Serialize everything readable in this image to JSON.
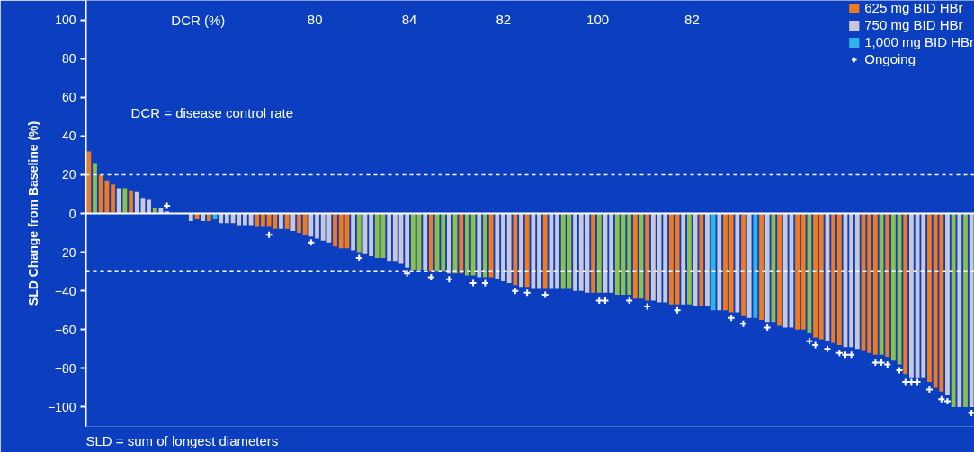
{
  "chart_data": {
    "type": "bar",
    "ylabel": "SLD Change from Baseline (%)",
    "ylim": [
      -110,
      110
    ],
    "yticks": [
      -100,
      -80,
      -60,
      -40,
      -20,
      0,
      20,
      40,
      60,
      80,
      100
    ],
    "grid": false,
    "legend": "top right",
    "tick_labels": "y",
    "annotations": [
      "DCR (%)",
      "80",
      "84",
      "82",
      "100",
      "82",
      "DCR = disease control rate",
      "SLD = sum of longest diameters"
    ],
    "ref_lines": [
      {
        "axis": "y",
        "value": 20,
        "color": "#ffffff",
        "line_style": "dashed"
      },
      {
        "axis": "y",
        "value": -30,
        "color": "#ffffff",
        "line_style": "dashed"
      }
    ],
    "categories": [
      null,
      null,
      null,
      null,
      null,
      null,
      null,
      null,
      null,
      null,
      null,
      null,
      null,
      null,
      null,
      null,
      null,
      null,
      null,
      null,
      null,
      null,
      null,
      null,
      null,
      null,
      null,
      null,
      null,
      null,
      null,
      null,
      null,
      null,
      null,
      null,
      null,
      null,
      null,
      null,
      null,
      null,
      null,
      null,
      null,
      null,
      null,
      null,
      null,
      null,
      null,
      null,
      null,
      null,
      null,
      null,
      null,
      null,
      null,
      null,
      null,
      null,
      null,
      null,
      null,
      null,
      null,
      null,
      null,
      null,
      null,
      null,
      null,
      null,
      null,
      null,
      null,
      null,
      null,
      null,
      null,
      null,
      null,
      null,
      null,
      null,
      null,
      null,
      null,
      null,
      null,
      null,
      null,
      null,
      null,
      null,
      null,
      null,
      null,
      null,
      null,
      null,
      null,
      null,
      null,
      null,
      null,
      null,
      null,
      null,
      null,
      null,
      null,
      null,
      null,
      null,
      null,
      null,
      null,
      null,
      null,
      null,
      null,
      null,
      null,
      null,
      null,
      null,
      null,
      null,
      null,
      null,
      null,
      null,
      null,
      null,
      null,
      null,
      null,
      null,
      null,
      null,
      null,
      null,
      null,
      null,
      null,
      null
    ],
    "series": [
      {
        "name": "625 mg BID HBr",
        "type": "bar",
        "color": "#f07a1e",
        "values": [
          32,
          null,
          20,
          17,
          15,
          null,
          null,
          12,
          null,
          null,
          null,
          null,
          null,
          null,
          null,
          null,
          null,
          null,
          -3,
          null,
          -4,
          null,
          null,
          null,
          null,
          null,
          null,
          null,
          -7,
          -7,
          -7,
          -8,
          null,
          -8,
          null,
          -10,
          -11,
          null,
          null,
          null,
          null,
          -17,
          -18,
          -18,
          null,
          null,
          null,
          null,
          null,
          null,
          null,
          null,
          null,
          null,
          null,
          null,
          null,
          -30,
          null,
          null,
          null,
          null,
          -31,
          null,
          null,
          null,
          null,
          -33,
          null,
          null,
          null,
          -37,
          null,
          -38,
          null,
          null,
          -39,
          null,
          null,
          null,
          null,
          null,
          null,
          null,
          -41,
          null,
          null,
          null,
          null,
          null,
          null,
          -44,
          null,
          -45,
          null,
          null,
          null,
          -47,
          -47,
          null,
          null,
          null,
          -48,
          null,
          null,
          null,
          -50,
          -51,
          null,
          -53,
          null,
          null,
          -55,
          null,
          null,
          -58,
          null,
          null,
          -60,
          -60,
          null,
          -64,
          -65,
          null,
          -67,
          -68,
          null,
          null,
          null,
          -71,
          -72,
          -73,
          null,
          -74,
          null,
          null,
          -83,
          null,
          null,
          null,
          -87,
          -90,
          -92,
          null,
          null,
          null,
          null,
          null
        ]
      },
      {
        "name": "750 mg BID HBr",
        "type": "bar",
        "color": "#c8c8d8",
        "values": [
          null,
          null,
          null,
          null,
          null,
          13,
          null,
          null,
          11,
          8,
          7,
          null,
          3,
          1,
          0,
          0,
          0,
          -4,
          null,
          -4,
          null,
          null,
          -5,
          -5,
          -5,
          -6,
          -6,
          -6,
          null,
          null,
          null,
          null,
          -8,
          null,
          -9,
          null,
          null,
          -12,
          -13,
          -14,
          -15,
          null,
          null,
          null,
          -19,
          null,
          -21,
          -22,
          null,
          null,
          -25,
          -25,
          -26,
          -28,
          null,
          null,
          -29,
          null,
          null,
          null,
          -31,
          null,
          null,
          null,
          null,
          -33,
          null,
          null,
          -34,
          -35,
          -36,
          null,
          -38,
          null,
          -39,
          -39,
          null,
          -39,
          -39,
          null,
          null,
          -40,
          -40,
          -41,
          null,
          null,
          -41,
          -41,
          null,
          null,
          null,
          null,
          null,
          null,
          -45,
          -46,
          -46,
          null,
          null,
          -47,
          null,
          -48,
          null,
          -48,
          null,
          -50,
          null,
          null,
          -51,
          null,
          -54,
          null,
          null,
          -56,
          null,
          null,
          -59,
          -59,
          null,
          null,
          null,
          null,
          null,
          -66,
          null,
          null,
          -69,
          -69,
          -70,
          null,
          null,
          null,
          null,
          null,
          null,
          null,
          null,
          -85,
          -85,
          -85,
          null,
          null,
          null,
          -94,
          null,
          -100,
          null,
          -100
        ]
      },
      {
        "name": "1,000 mg BID HBr",
        "type": "bar",
        "color": "#2fb4e8",
        "values": [
          null,
          null,
          null,
          null,
          null,
          null,
          null,
          null,
          null,
          null,
          null,
          null,
          null,
          null,
          null,
          null,
          null,
          null,
          null,
          null,
          null,
          -3,
          null,
          null,
          null,
          null,
          null,
          null,
          null,
          null,
          null,
          null,
          null,
          null,
          null,
          null,
          null,
          null,
          null,
          null,
          null,
          null,
          null,
          null,
          null,
          null,
          null,
          null,
          null,
          null,
          null,
          null,
          null,
          null,
          null,
          null,
          null,
          null,
          null,
          null,
          null,
          null,
          null,
          null,
          null,
          null,
          null,
          null,
          null,
          null,
          null,
          null,
          null,
          null,
          null,
          null,
          null,
          null,
          null,
          null,
          null,
          null,
          null,
          null,
          null,
          null,
          null,
          null,
          null,
          null,
          null,
          null,
          null,
          null,
          null,
          null,
          null,
          null,
          null,
          null,
          null,
          null,
          null,
          null,
          -50,
          null,
          null,
          null,
          null,
          null,
          null,
          -54,
          null,
          null,
          null,
          null,
          null,
          null,
          null,
          null,
          null,
          null,
          null,
          null,
          null,
          null,
          null,
          null,
          null,
          null,
          null,
          null,
          null,
          null,
          null,
          null,
          null,
          null,
          null,
          null,
          null,
          null,
          null,
          null,
          null,
          null,
          null,
          null
        ]
      },
      {
        "type": "bar",
        "color": "#8cc04a",
        "values": [
          null,
          26,
          null,
          null,
          null,
          null,
          13,
          null,
          null,
          null,
          null,
          3,
          null,
          null,
          null,
          null,
          null,
          null,
          null,
          null,
          null,
          null,
          null,
          null,
          null,
          null,
          null,
          null,
          null,
          null,
          null,
          null,
          null,
          null,
          null,
          null,
          null,
          null,
          null,
          null,
          null,
          null,
          null,
          null,
          null,
          -20,
          null,
          null,
          -23,
          -23,
          null,
          null,
          null,
          null,
          -29,
          -29,
          null,
          null,
          -30,
          -30,
          null,
          -31,
          null,
          -32,
          -32,
          null,
          -33,
          null,
          null,
          null,
          null,
          null,
          null,
          null,
          null,
          null,
          null,
          null,
          null,
          -39,
          -39,
          null,
          null,
          null,
          null,
          -41,
          null,
          null,
          -42,
          -42,
          -42,
          null,
          -44,
          null,
          null,
          null,
          null,
          null,
          null,
          null,
          -47,
          null,
          null,
          null,
          null,
          null,
          null,
          null,
          null,
          null,
          null,
          null,
          null,
          null,
          -56,
          null,
          null,
          null,
          null,
          null,
          -62,
          null,
          null,
          null,
          null,
          null,
          null,
          null,
          null,
          null,
          null,
          null,
          -73,
          null,
          -76,
          -78,
          null,
          null,
          null,
          null,
          null,
          null,
          null,
          null,
          -100,
          null,
          -100,
          null
        ]
      },
      {
        "name": "Ongoing",
        "type": "scatter",
        "marker": "cross",
        "color": "#ffffff",
        "values": [
          null,
          null,
          null,
          null,
          null,
          null,
          null,
          null,
          null,
          null,
          null,
          null,
          null,
          4,
          null,
          null,
          null,
          null,
          null,
          null,
          null,
          null,
          null,
          null,
          null,
          null,
          null,
          null,
          null,
          null,
          -11,
          null,
          null,
          null,
          null,
          null,
          null,
          -15,
          null,
          null,
          null,
          null,
          null,
          null,
          null,
          -23,
          null,
          null,
          null,
          null,
          null,
          null,
          null,
          -31,
          null,
          null,
          null,
          -33,
          null,
          null,
          -34,
          null,
          null,
          null,
          -36,
          null,
          -36,
          null,
          null,
          null,
          null,
          -40,
          null,
          -41,
          null,
          null,
          -42,
          null,
          null,
          null,
          null,
          null,
          null,
          null,
          null,
          -45,
          -45,
          null,
          null,
          null,
          -45,
          null,
          null,
          -48,
          null,
          null,
          null,
          null,
          -50,
          null,
          null,
          null,
          null,
          null,
          null,
          null,
          null,
          -54,
          null,
          -57,
          null,
          null,
          null,
          -59,
          null,
          null,
          null,
          null,
          null,
          null,
          -66,
          -68,
          null,
          -70,
          null,
          -72,
          -73,
          -73,
          null,
          null,
          null,
          -77,
          -77,
          -78,
          null,
          -81,
          -87,
          -87,
          -87,
          null,
          -91,
          null,
          -96,
          -97,
          null,
          null,
          null,
          -103
        ]
      }
    ]
  }
}
